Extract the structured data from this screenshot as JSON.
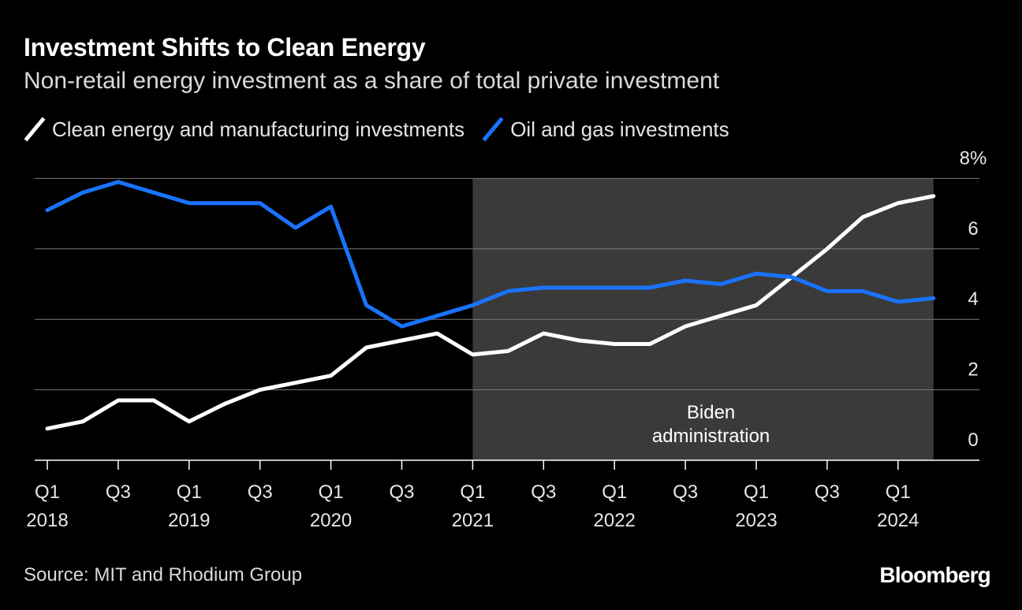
{
  "title": "Investment Shifts to Clean Energy",
  "subtitle": "Non-retail energy investment as a share of total private investment",
  "source": "Source: MIT and Rhodium Group",
  "logo": "Bloomberg",
  "colors": {
    "background": "#000000",
    "clean": "#ffffff",
    "oil": "#1a73ff",
    "shade": "#3a3a3a",
    "grid": "#7a7a7a"
  },
  "chart_data": {
    "type": "line",
    "title": "Investment Shifts to Clean Energy",
    "subtitle": "Non-retail energy investment as a share of total private investment",
    "x": [
      "2018Q1",
      "2018Q2",
      "2018Q3",
      "2018Q4",
      "2019Q1",
      "2019Q2",
      "2019Q3",
      "2019Q4",
      "2020Q1",
      "2020Q2",
      "2020Q3",
      "2020Q4",
      "2021Q1",
      "2021Q2",
      "2021Q3",
      "2021Q4",
      "2022Q1",
      "2022Q2",
      "2022Q3",
      "2022Q4",
      "2023Q1",
      "2023Q2",
      "2023Q3",
      "2023Q4",
      "2024Q1",
      "2024Q2"
    ],
    "series": [
      {
        "name": "Clean energy and manufacturing investments",
        "color": "#ffffff",
        "values": [
          0.9,
          1.1,
          1.7,
          1.7,
          1.1,
          1.6,
          2.0,
          2.2,
          2.4,
          3.2,
          3.4,
          3.6,
          3.0,
          3.1,
          3.6,
          3.4,
          3.3,
          3.3,
          3.8,
          4.1,
          4.4,
          5.2,
          6.0,
          6.9,
          7.3,
          7.5
        ]
      },
      {
        "name": "Oil and gas investments",
        "color": "#1a73ff",
        "values": [
          7.1,
          7.6,
          7.9,
          7.6,
          7.3,
          7.3,
          7.3,
          6.6,
          7.2,
          4.4,
          3.8,
          4.1,
          4.4,
          4.8,
          4.9,
          4.9,
          4.9,
          4.9,
          5.1,
          5.0,
          5.3,
          5.2,
          4.8,
          4.8,
          4.5,
          4.6
        ]
      }
    ],
    "y_ticks": [
      "0",
      "2",
      "4",
      "6",
      "8%"
    ],
    "ylim": [
      0,
      8
    ],
    "x_tick_labels": [
      {
        "index": 0,
        "q": "Q1",
        "year": "2018"
      },
      {
        "index": 2,
        "q": "Q3",
        "year": ""
      },
      {
        "index": 4,
        "q": "Q1",
        "year": "2019"
      },
      {
        "index": 6,
        "q": "Q3",
        "year": ""
      },
      {
        "index": 8,
        "q": "Q1",
        "year": "2020"
      },
      {
        "index": 10,
        "q": "Q3",
        "year": ""
      },
      {
        "index": 12,
        "q": "Q1",
        "year": "2021"
      },
      {
        "index": 14,
        "q": "Q3",
        "year": ""
      },
      {
        "index": 16,
        "q": "Q1",
        "year": "2022"
      },
      {
        "index": 18,
        "q": "Q3",
        "year": ""
      },
      {
        "index": 20,
        "q": "Q1",
        "year": "2023"
      },
      {
        "index": 22,
        "q": "Q3",
        "year": ""
      },
      {
        "index": 24,
        "q": "Q1",
        "year": "2024"
      }
    ],
    "shaded_region": {
      "from": "2021Q1",
      "to": "2024Q2",
      "label_lines": [
        "Biden",
        "administration"
      ]
    },
    "grid": true,
    "legend_position": "top-left",
    "y_axis_side": "right"
  }
}
